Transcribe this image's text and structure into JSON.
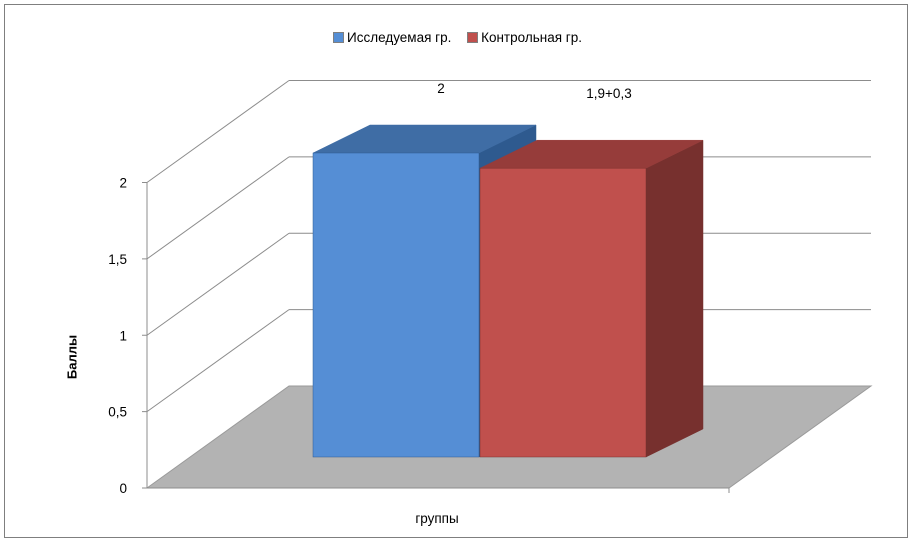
{
  "chart_data": {
    "type": "bar",
    "title": "",
    "categories": [
      ""
    ],
    "xlabel": "группы",
    "ylabel": "Баллы",
    "ylim": [
      0,
      2
    ],
    "yticks": [
      "0",
      "0,5",
      "1",
      "1,5",
      "2"
    ],
    "grid": true,
    "legend_position": "top",
    "series": [
      {
        "name": "Исследуемая гр.",
        "values": [
          2
        ],
        "data_label": "2",
        "color": "#558ed5",
        "side_color": "#2e5a8f",
        "top_color": "#3f6da5"
      },
      {
        "name": "Контрольная гр.",
        "values": [
          1.9
        ],
        "data_label": "1,9+0,3",
        "color": "#c0504d",
        "side_color": "#77302e",
        "top_color": "#963c3a"
      }
    ],
    "floor_color": "#b3b3b3"
  }
}
